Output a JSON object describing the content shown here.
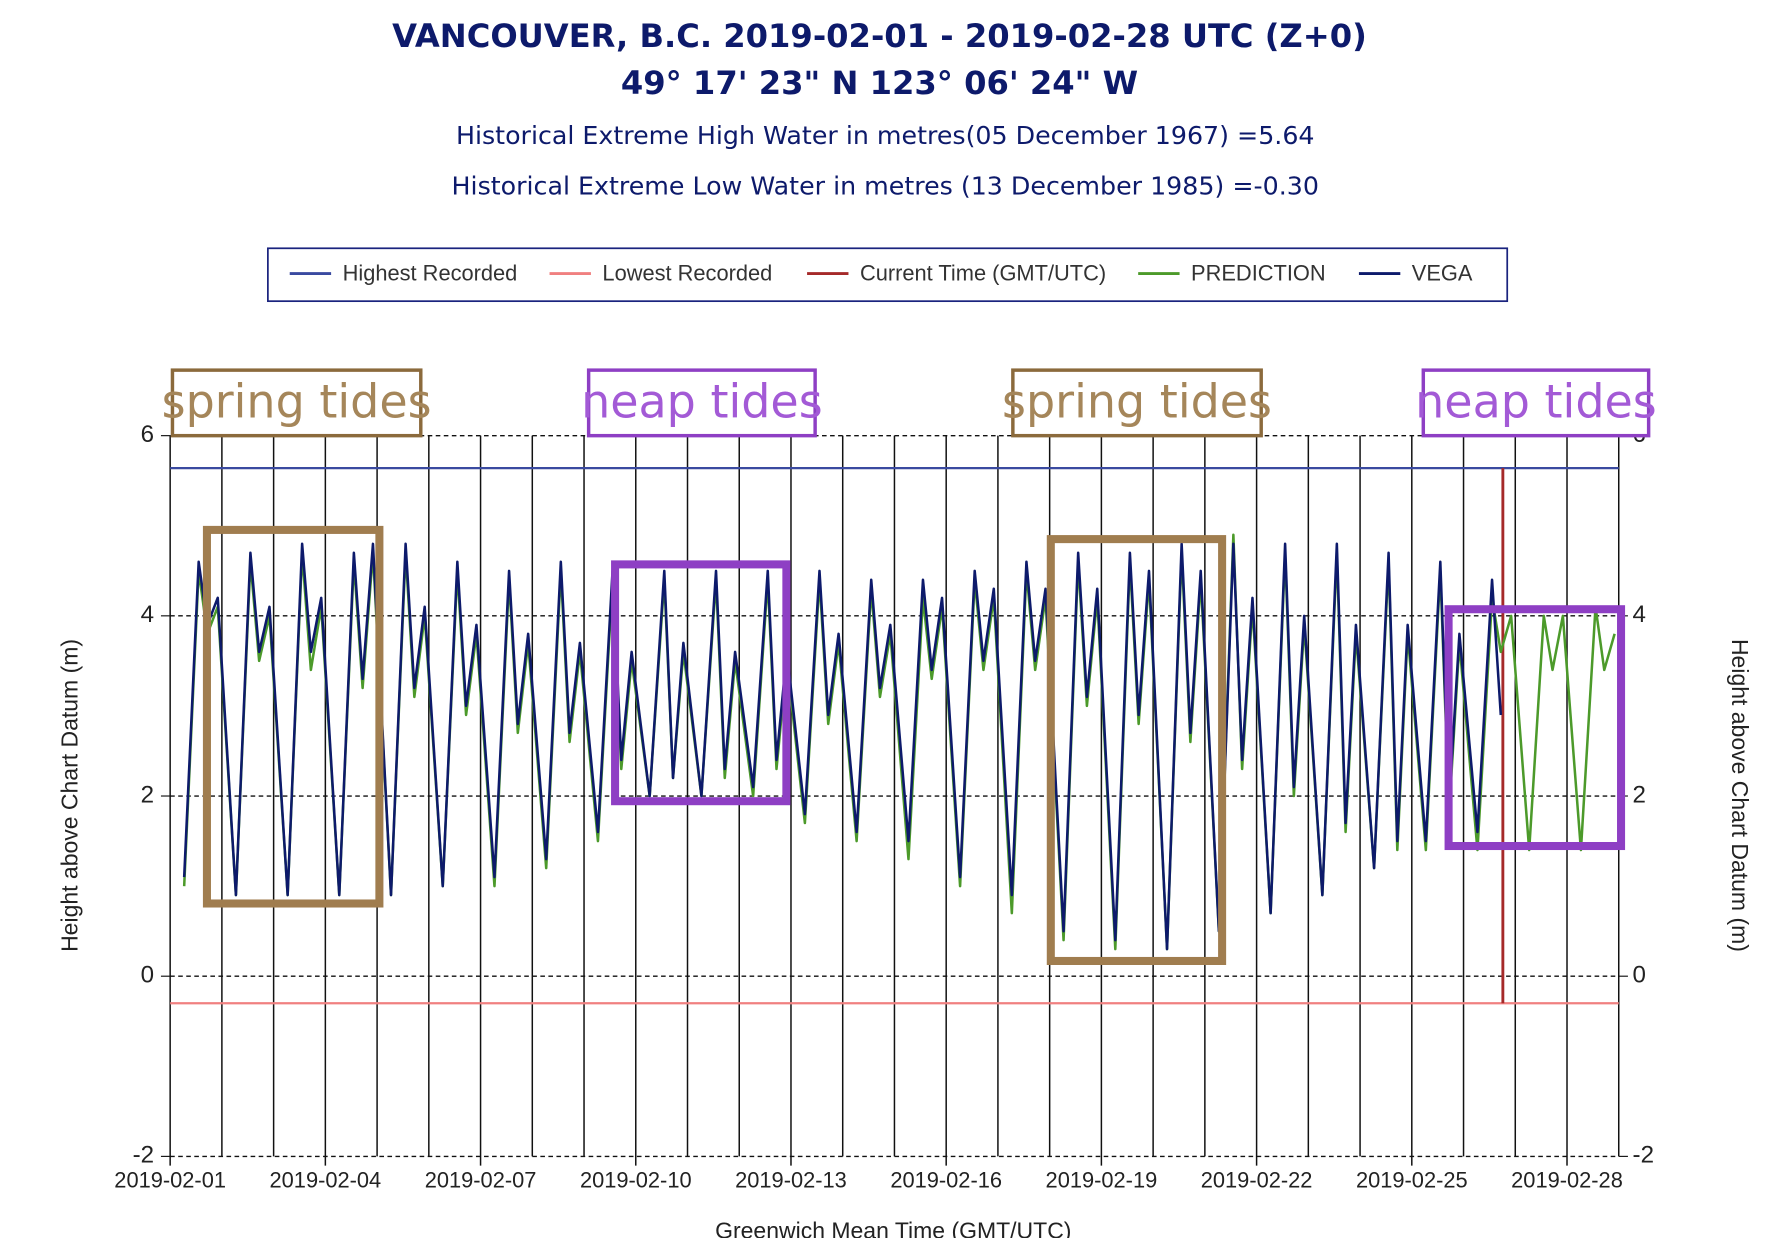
{
  "chart_data": {
    "type": "line",
    "title": "VANCOUVER, B.C. 2019-02-01 - 2019-02-28 UTC (Z+0)",
    "subtitle": "49° 17' 23\" N 123° 06' 24\" W",
    "notes": [
      "Historical Extreme High Water in metres(05 December 1967) =5.64",
      "Historical Extreme Low Water in metres (13 December 1985) =-0.30"
    ],
    "x_label": "Greenwich Mean Time (GMT/UTC)",
    "y_label": "Height above Chart Datum (m)",
    "y2_label": "Height above Chart Datum (m)",
    "xlim": [
      0,
      28
    ],
    "xticks": [
      {
        "value": 0,
        "label": "2019-02-01"
      },
      {
        "value": 3,
        "label": "2019-02-04"
      },
      {
        "value": 6,
        "label": "2019-02-07"
      },
      {
        "value": 9,
        "label": "2019-02-10"
      },
      {
        "value": 12,
        "label": "2019-02-13"
      },
      {
        "value": 15,
        "label": "2019-02-16"
      },
      {
        "value": 18,
        "label": "2019-02-19"
      },
      {
        "value": 21,
        "label": "2019-02-22"
      },
      {
        "value": 24,
        "label": "2019-02-25"
      },
      {
        "value": 27,
        "label": "2019-02-28"
      }
    ],
    "x_minor_ticks": [
      1,
      2,
      4,
      5,
      7,
      8,
      10,
      11,
      13,
      14,
      16,
      17,
      19,
      20,
      22,
      23,
      25,
      26,
      28
    ],
    "ylim": [
      -2,
      6
    ],
    "yticks": [
      -2,
      0,
      2,
      4,
      6
    ],
    "y2lim": [
      -2,
      6
    ],
    "y2ticks": [
      -2,
      0,
      2,
      4,
      6
    ],
    "grid": true,
    "legend_position": "top",
    "x": [
      0.27,
      0.55,
      0.72,
      0.92,
      1.27,
      1.55,
      1.72,
      1.92,
      2.27,
      2.55,
      2.72,
      2.92,
      3.27,
      3.55,
      3.72,
      3.92,
      4.27,
      4.55,
      4.72,
      4.92,
      5.27,
      5.55,
      5.72,
      5.92,
      6.27,
      6.55,
      6.72,
      6.92,
      7.27,
      7.55,
      7.72,
      7.92,
      8.27,
      8.55,
      8.72,
      8.92,
      9.27,
      9.55,
      9.72,
      9.92,
      10.27,
      10.55,
      10.72,
      10.92,
      11.27,
      11.55,
      11.72,
      11.92,
      12.27,
      12.55,
      12.72,
      12.92,
      13.27,
      13.55,
      13.72,
      13.92,
      14.27,
      14.55,
      14.72,
      14.92,
      15.27,
      15.55,
      15.72,
      15.92,
      16.27,
      16.55,
      16.72,
      16.92,
      17.27,
      17.55,
      17.72,
      17.92,
      18.27,
      18.55,
      18.72,
      18.92,
      19.27,
      19.55,
      19.72,
      19.92,
      20.27,
      20.55,
      20.72,
      20.92,
      21.27,
      21.55,
      21.72,
      21.92,
      22.27,
      22.55,
      22.72,
      22.92,
      23.27,
      23.55,
      23.72,
      23.92,
      24.27,
      24.55,
      24.72,
      24.92,
      25.27,
      25.55,
      25.72,
      25.92,
      26.27,
      26.55,
      26.72,
      26.92,
      27.27,
      27.55,
      27.72,
      27.92
    ],
    "series": [
      {
        "name": "Highest Recorded",
        "color": "#3a4aa0",
        "y": 5.64
      },
      {
        "name": "Lowest Recorded",
        "color": "#f08080",
        "y": -0.3
      },
      {
        "name": "Current Time (GMT/UTC)",
        "color": "#a52a2a",
        "x": 25.76
      },
      {
        "name": "PREDICTION",
        "color": "#4c9a2a",
        "values": [
          1.0,
          4.5,
          3.8,
          4.1,
          0.9,
          4.6,
          3.5,
          4.0,
          0.9,
          4.7,
          3.4,
          4.1,
          0.9,
          4.6,
          3.2,
          4.7,
          0.9,
          4.7,
          3.1,
          4.0,
          1.0,
          4.5,
          2.9,
          3.8,
          1.0,
          4.4,
          2.7,
          3.7,
          1.2,
          4.5,
          2.6,
          3.6,
          1.5,
          4.4,
          2.3,
          3.5,
          2.0,
          4.4,
          2.2,
          3.6,
          2.0,
          4.4,
          2.2,
          3.5,
          2.0,
          4.4,
          2.3,
          3.5,
          1.7,
          4.4,
          2.8,
          3.7,
          1.5,
          4.3,
          3.1,
          3.8,
          1.3,
          4.2,
          3.3,
          4.1,
          1.0,
          4.4,
          3.4,
          4.2,
          0.7,
          4.5,
          3.4,
          4.2,
          0.4,
          4.6,
          3.0,
          4.2,
          0.3,
          4.6,
          2.8,
          4.4,
          0.3,
          4.7,
          2.6,
          4.4,
          0.5,
          4.9,
          2.3,
          4.1,
          0.7,
          4.7,
          2.0,
          3.9,
          0.9,
          4.7,
          1.6,
          3.8,
          1.2,
          4.6,
          1.4,
          3.8,
          1.4,
          4.5,
          1.8,
          3.7,
          1.4,
          4.2,
          3.6,
          4.0,
          1.4,
          4.0,
          3.4,
          4.0,
          1.4,
          4.1,
          3.4,
          3.8
        ]
      },
      {
        "name": "VEGA",
        "color": "#0d1a6b",
        "values": [
          1.1,
          4.6,
          3.9,
          4.2,
          0.9,
          4.7,
          3.6,
          4.1,
          0.9,
          4.8,
          3.6,
          4.2,
          0.9,
          4.7,
          3.3,
          4.8,
          0.9,
          4.8,
          3.2,
          4.1,
          1.0,
          4.6,
          3.0,
          3.9,
          1.1,
          4.5,
          2.8,
          3.8,
          1.3,
          4.6,
          2.7,
          3.7,
          1.6,
          4.5,
          2.4,
          3.6,
          2.0,
          4.5,
          2.2,
          3.7,
          2.0,
          4.5,
          2.3,
          3.6,
          2.1,
          4.5,
          2.4,
          3.6,
          1.8,
          4.5,
          2.9,
          3.8,
          1.6,
          4.4,
          3.2,
          3.9,
          1.5,
          4.4,
          3.4,
          4.2,
          1.1,
          4.5,
          3.5,
          4.3,
          0.9,
          4.6,
          3.5,
          4.3,
          0.5,
          4.7,
          3.1,
          4.3,
          0.4,
          4.7,
          2.9,
          4.5,
          0.3,
          4.8,
          2.7,
          4.5,
          0.5,
          4.8,
          2.4,
          4.2,
          0.7,
          4.8,
          2.1,
          4.0,
          0.9,
          4.8,
          1.7,
          3.9,
          1.2,
          4.7,
          1.5,
          3.9,
          1.5,
          4.6,
          1.9,
          3.8,
          1.6,
          4.4,
          2.9,
          null,
          null,
          null,
          null,
          null,
          null,
          null,
          null,
          null
        ]
      }
    ],
    "annotations": [
      {
        "text": "spring tides",
        "color": "#a5865a"
      },
      {
        "text": "neap tides",
        "color": "#a35ad6"
      },
      {
        "text": "spring tides",
        "color": "#a5865a"
      },
      {
        "text": "neap tides",
        "color": "#a35ad6"
      }
    ]
  }
}
